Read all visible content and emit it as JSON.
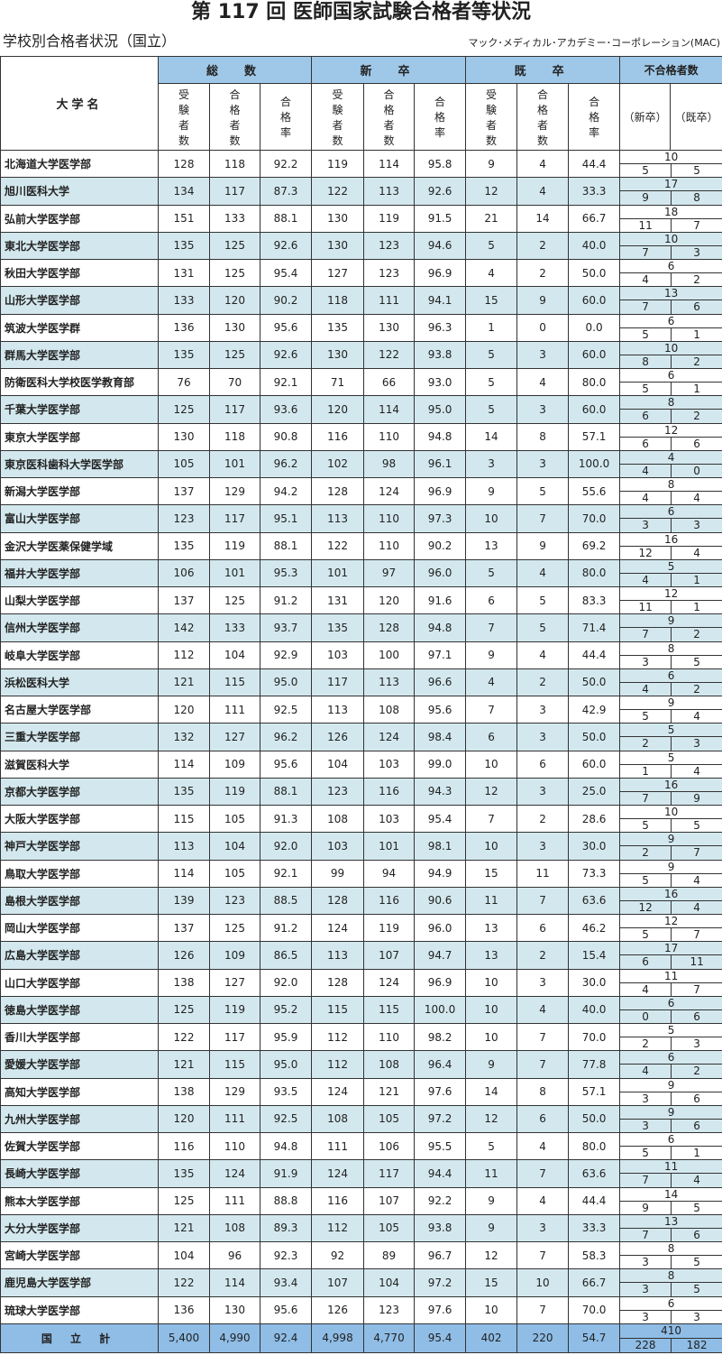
{
  "title": "第 117 回 医師国家試験合格者等状況",
  "subtitle": "学校別合格者状況（国立）",
  "organization": "マック･メディカル･アカデミー･コーポレーション(MAC)",
  "header": {
    "university": "大学名",
    "groups": [
      "総　数",
      "新　卒",
      "既　卒"
    ],
    "fail_group": "不合格者数",
    "sub_columns": [
      "受験者数",
      "合格者数",
      "合格率"
    ],
    "fail_sub": [
      "（新卒）",
      "（既卒）"
    ]
  },
  "rows": [
    [
      "北海道大学医学部",
      "128",
      "118",
      "92.2",
      "119",
      "114",
      "95.8",
      "9",
      "4",
      "44.4",
      "10",
      "5",
      "5"
    ],
    [
      "旭川医科大学",
      "134",
      "117",
      "87.3",
      "122",
      "113",
      "92.6",
      "12",
      "4",
      "33.3",
      "17",
      "9",
      "8"
    ],
    [
      "弘前大学医学部",
      "151",
      "133",
      "88.1",
      "130",
      "119",
      "91.5",
      "21",
      "14",
      "66.7",
      "18",
      "11",
      "7"
    ],
    [
      "東北大学医学部",
      "135",
      "125",
      "92.6",
      "130",
      "123",
      "94.6",
      "5",
      "2",
      "40.0",
      "10",
      "7",
      "3"
    ],
    [
      "秋田大学医学部",
      "131",
      "125",
      "95.4",
      "127",
      "123",
      "96.9",
      "4",
      "2",
      "50.0",
      "6",
      "4",
      "2"
    ],
    [
      "山形大学医学部",
      "133",
      "120",
      "90.2",
      "118",
      "111",
      "94.1",
      "15",
      "9",
      "60.0",
      "13",
      "7",
      "6"
    ],
    [
      "筑波大学医学群",
      "136",
      "130",
      "95.6",
      "135",
      "130",
      "96.3",
      "1",
      "0",
      "0.0",
      "6",
      "5",
      "1"
    ],
    [
      "群馬大学医学部",
      "135",
      "125",
      "92.6",
      "130",
      "122",
      "93.8",
      "5",
      "3",
      "60.0",
      "10",
      "8",
      "2"
    ],
    [
      "防衛医科大学校医学教育部",
      "76",
      "70",
      "92.1",
      "71",
      "66",
      "93.0",
      "5",
      "4",
      "80.0",
      "6",
      "5",
      "1"
    ],
    [
      "千葉大学医学部",
      "125",
      "117",
      "93.6",
      "120",
      "114",
      "95.0",
      "5",
      "3",
      "60.0",
      "8",
      "6",
      "2"
    ],
    [
      "東京大学医学部",
      "130",
      "118",
      "90.8",
      "116",
      "110",
      "94.8",
      "14",
      "8",
      "57.1",
      "12",
      "6",
      "6"
    ],
    [
      "東京医科歯科大学医学部",
      "105",
      "101",
      "96.2",
      "102",
      "98",
      "96.1",
      "3",
      "3",
      "100.0",
      "4",
      "4",
      "0"
    ],
    [
      "新潟大学医学部",
      "137",
      "129",
      "94.2",
      "128",
      "124",
      "96.9",
      "9",
      "5",
      "55.6",
      "8",
      "4",
      "4"
    ],
    [
      "富山大学医学部",
      "123",
      "117",
      "95.1",
      "113",
      "110",
      "97.3",
      "10",
      "7",
      "70.0",
      "6",
      "3",
      "3"
    ],
    [
      "金沢大学医薬保健学域",
      "135",
      "119",
      "88.1",
      "122",
      "110",
      "90.2",
      "13",
      "9",
      "69.2",
      "16",
      "12",
      "4"
    ],
    [
      "福井大学医学部",
      "106",
      "101",
      "95.3",
      "101",
      "97",
      "96.0",
      "5",
      "4",
      "80.0",
      "5",
      "4",
      "1"
    ],
    [
      "山梨大学医学部",
      "137",
      "125",
      "91.2",
      "131",
      "120",
      "91.6",
      "6",
      "5",
      "83.3",
      "12",
      "11",
      "1"
    ],
    [
      "信州大学医学部",
      "142",
      "133",
      "93.7",
      "135",
      "128",
      "94.8",
      "7",
      "5",
      "71.4",
      "9",
      "7",
      "2"
    ],
    [
      "岐阜大学医学部",
      "112",
      "104",
      "92.9",
      "103",
      "100",
      "97.1",
      "9",
      "4",
      "44.4",
      "8",
      "3",
      "5"
    ],
    [
      "浜松医科大学",
      "121",
      "115",
      "95.0",
      "117",
      "113",
      "96.6",
      "4",
      "2",
      "50.0",
      "6",
      "4",
      "2"
    ],
    [
      "名古屋大学医学部",
      "120",
      "111",
      "92.5",
      "113",
      "108",
      "95.6",
      "7",
      "3",
      "42.9",
      "9",
      "5",
      "4"
    ],
    [
      "三重大学医学部",
      "132",
      "127",
      "96.2",
      "126",
      "124",
      "98.4",
      "6",
      "3",
      "50.0",
      "5",
      "2",
      "3"
    ],
    [
      "滋賀医科大学",
      "114",
      "109",
      "95.6",
      "104",
      "103",
      "99.0",
      "10",
      "6",
      "60.0",
      "5",
      "1",
      "4"
    ],
    [
      "京都大学医学部",
      "135",
      "119",
      "88.1",
      "123",
      "116",
      "94.3",
      "12",
      "3",
      "25.0",
      "16",
      "7",
      "9"
    ],
    [
      "大阪大学医学部",
      "115",
      "105",
      "91.3",
      "108",
      "103",
      "95.4",
      "7",
      "2",
      "28.6",
      "10",
      "5",
      "5"
    ],
    [
      "神戸大学医学部",
      "113",
      "104",
      "92.0",
      "103",
      "101",
      "98.1",
      "10",
      "3",
      "30.0",
      "9",
      "2",
      "7"
    ],
    [
      "鳥取大学医学部",
      "114",
      "105",
      "92.1",
      "99",
      "94",
      "94.9",
      "15",
      "11",
      "73.3",
      "9",
      "5",
      "4"
    ],
    [
      "島根大学医学部",
      "139",
      "123",
      "88.5",
      "128",
      "116",
      "90.6",
      "11",
      "7",
      "63.6",
      "16",
      "12",
      "4"
    ],
    [
      "岡山大学医学部",
      "137",
      "125",
      "91.2",
      "124",
      "119",
      "96.0",
      "13",
      "6",
      "46.2",
      "12",
      "5",
      "7"
    ],
    [
      "広島大学医学部",
      "126",
      "109",
      "86.5",
      "113",
      "107",
      "94.7",
      "13",
      "2",
      "15.4",
      "17",
      "6",
      "11"
    ],
    [
      "山口大学医学部",
      "138",
      "127",
      "92.0",
      "128",
      "124",
      "96.9",
      "10",
      "3",
      "30.0",
      "11",
      "4",
      "7"
    ],
    [
      "徳島大学医学部",
      "125",
      "119",
      "95.2",
      "115",
      "115",
      "100.0",
      "10",
      "4",
      "40.0",
      "6",
      "0",
      "6"
    ],
    [
      "香川大学医学部",
      "122",
      "117",
      "95.9",
      "112",
      "110",
      "98.2",
      "10",
      "7",
      "70.0",
      "5",
      "2",
      "3"
    ],
    [
      "愛媛大学医学部",
      "121",
      "115",
      "95.0",
      "112",
      "108",
      "96.4",
      "9",
      "7",
      "77.8",
      "6",
      "4",
      "2"
    ],
    [
      "高知大学医学部",
      "138",
      "129",
      "93.5",
      "124",
      "121",
      "97.6",
      "14",
      "8",
      "57.1",
      "9",
      "3",
      "6"
    ],
    [
      "九州大学医学部",
      "120",
      "111",
      "92.5",
      "108",
      "105",
      "97.2",
      "12",
      "6",
      "50.0",
      "9",
      "3",
      "6"
    ],
    [
      "佐賀大学医学部",
      "116",
      "110",
      "94.8",
      "111",
      "106",
      "95.5",
      "5",
      "4",
      "80.0",
      "6",
      "5",
      "1"
    ],
    [
      "長崎大学医学部",
      "135",
      "124",
      "91.9",
      "124",
      "117",
      "94.4",
      "11",
      "7",
      "63.6",
      "11",
      "7",
      "4"
    ],
    [
      "熊本大学医学部",
      "125",
      "111",
      "88.8",
      "116",
      "107",
      "92.2",
      "9",
      "4",
      "44.4",
      "14",
      "9",
      "5"
    ],
    [
      "大分大学医学部",
      "121",
      "108",
      "89.3",
      "112",
      "105",
      "93.8",
      "9",
      "3",
      "33.3",
      "13",
      "7",
      "6"
    ],
    [
      "宮崎大学医学部",
      "104",
      "96",
      "92.3",
      "92",
      "89",
      "96.7",
      "12",
      "7",
      "58.3",
      "8",
      "3",
      "5"
    ],
    [
      "鹿児島大学医学部",
      "122",
      "114",
      "93.4",
      "107",
      "104",
      "97.2",
      "15",
      "10",
      "66.7",
      "8",
      "3",
      "5"
    ],
    [
      "琉球大学医学部",
      "136",
      "130",
      "95.6",
      "126",
      "123",
      "97.6",
      "10",
      "7",
      "70.0",
      "6",
      "3",
      "3"
    ]
  ],
  "total": [
    "国 立 計",
    "5,400",
    "4,990",
    "92.4",
    "4,998",
    "4,770",
    "95.4",
    "402",
    "220",
    "54.7",
    "410",
    "228",
    "182"
  ],
  "colors": {
    "header_blue": "#9fc8e8",
    "stripe": "#d3e8ee",
    "total_blue": "#8fbde6"
  }
}
